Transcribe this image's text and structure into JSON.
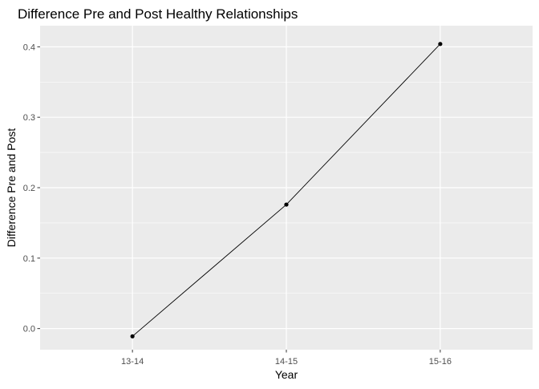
{
  "chart_data": {
    "type": "line",
    "title": "Difference Pre and Post Healthy Relationships",
    "xlabel": "Year",
    "ylabel": "Difference Pre and Post",
    "categories": [
      "13-14",
      "14-15",
      "15-16"
    ],
    "values": [
      -0.011,
      0.176,
      0.404
    ],
    "ylim": [
      -0.03,
      0.43
    ],
    "yticks": [
      0.0,
      0.1,
      0.2,
      0.3,
      0.4
    ],
    "ytick_labels": [
      "0.0",
      "0.1",
      "0.2",
      "0.3",
      "0.4"
    ],
    "grid": true,
    "legend": "none",
    "colors": {
      "panel_background": "#EBEBEB",
      "grid_major": "#FFFFFF",
      "line": "#000000",
      "point": "#000000",
      "tick_text": "#4D4D4D",
      "title_text": "#000000"
    }
  }
}
